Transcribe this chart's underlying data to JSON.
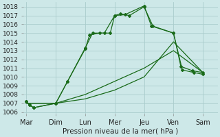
{
  "xlabel_label": "Pression niveau de la mer( hPa )",
  "ylim": [
    1005.8,
    1018.5
  ],
  "yticks": [
    1006,
    1007,
    1008,
    1009,
    1010,
    1011,
    1012,
    1013,
    1014,
    1015,
    1016,
    1017,
    1018
  ],
  "background_color": "#cde8e8",
  "grid_color": "#aacccc",
  "line_color": "#1a6b1a",
  "day_x_positions": [
    0,
    1,
    2,
    3,
    4,
    5,
    6
  ],
  "day_labels": [
    "Mar",
    "Dim",
    "Lun",
    "Mer",
    "Jeu",
    "Ven",
    "Sam"
  ],
  "xlim": [
    -0.1,
    6.5
  ],
  "smooth_line1_x": [
    0.0,
    1.0,
    2.0,
    3.0,
    4.0,
    5.0,
    6.0
  ],
  "smooth_line1_y": [
    1007.0,
    1007.0,
    1008.0,
    1009.5,
    1011.0,
    1013.0,
    1010.5
  ],
  "smooth_line2_x": [
    0.0,
    1.0,
    2.0,
    3.0,
    4.0,
    5.0,
    6.0
  ],
  "smooth_line2_y": [
    1007.0,
    1007.0,
    1007.5,
    1008.5,
    1010.0,
    1014.0,
    1010.5
  ],
  "marker_line1_x": [
    0.0,
    0.1,
    0.25,
    1.0,
    1.4,
    2.0,
    2.25,
    2.65,
    3.0,
    3.2,
    3.5,
    4.0,
    4.3,
    5.0,
    5.3,
    5.7,
    6.0
  ],
  "marker_line1_y": [
    1007.2,
    1006.8,
    1006.5,
    1007.0,
    1009.5,
    1013.3,
    1015.0,
    1015.0,
    1017.0,
    1017.2,
    1017.0,
    1018.0,
    1015.8,
    1015.0,
    1010.8,
    1010.5,
    1010.3
  ],
  "marker_line2_x": [
    0.0,
    0.1,
    0.25,
    1.0,
    1.4,
    2.0,
    2.15,
    2.5,
    2.85,
    3.0,
    3.35,
    4.0,
    4.25,
    5.0,
    5.25,
    5.65,
    6.0
  ],
  "marker_line2_y": [
    1007.2,
    1006.8,
    1006.5,
    1007.0,
    1009.5,
    1013.2,
    1014.8,
    1015.0,
    1015.0,
    1017.0,
    1017.1,
    1018.1,
    1015.8,
    1015.0,
    1011.2,
    1010.7,
    1010.5
  ]
}
